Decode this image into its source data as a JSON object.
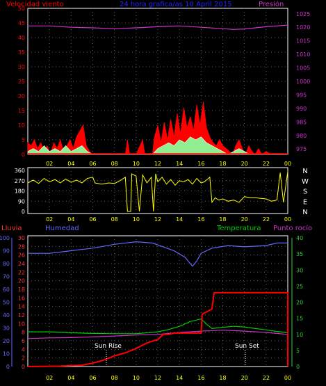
{
  "header": {
    "wind_label": "Velocidad viento",
    "title": "24 hora grafica/as  10 April 2015",
    "pressure_label": "Presión"
  },
  "lower_header": {
    "rain_label": "Lluvia",
    "humidity_label": "Humedad",
    "temperature_label": "Temperatura",
    "dewpoint_label": "Punto rocío"
  },
  "annotations": {
    "sunrise": "Sun Rise",
    "sunset": "Sun Set"
  },
  "colors": {
    "wind": "#ff0000",
    "wind_gust_fill": "#90ee90",
    "wind_avg": "#ffffff",
    "pressure": "#cc33cc",
    "direction": "#ffff00",
    "humidity": "#6666ff",
    "temperature": "#00cc00",
    "dewpoint": "#cc33cc",
    "rain": "#ff0000",
    "grid": "#606060",
    "frame": "#ffffff",
    "wind_axis": "#ff0000",
    "pressure_axis": "#cc33cc",
    "direction_axis": "#ffffff",
    "rain_axis": "#ff3333",
    "humidity_axis": "#6666ff",
    "temp_axis": "#33cc33",
    "time_axis": "#ffff00"
  },
  "chart_data": [
    {
      "type": "area",
      "x_ticks": [
        "02",
        "04",
        "06",
        "08",
        "10",
        "12",
        "14",
        "16",
        "18",
        "20",
        "22",
        "00"
      ],
      "xlim": [
        0,
        24
      ],
      "left_axis": {
        "ticks": [
          0,
          5,
          10,
          15,
          20,
          25,
          30,
          35,
          40,
          45,
          50
        ],
        "ylim": [
          0,
          50
        ]
      },
      "right_axis": {
        "ticks": [
          975,
          980,
          985,
          990,
          995,
          1000,
          1005,
          1010,
          1015,
          1020,
          1025
        ],
        "ylim": [
          973,
          1027
        ]
      },
      "series": [
        {
          "name": "Velocidad viento",
          "values": [
            [
              0,
              4
            ],
            [
              0.3,
              3
            ],
            [
              0.6,
              5
            ],
            [
              0.9,
              2
            ],
            [
              1.2,
              4
            ],
            [
              1.5,
              1
            ],
            [
              1.8,
              3
            ],
            [
              2.1,
              0
            ],
            [
              2.4,
              4
            ],
            [
              2.7,
              2
            ],
            [
              3.0,
              5
            ],
            [
              3.3,
              1
            ],
            [
              3.6,
              3
            ],
            [
              3.9,
              5
            ],
            [
              4.2,
              2
            ],
            [
              4.5,
              6
            ],
            [
              4.8,
              8
            ],
            [
              5.1,
              10
            ],
            [
              5.4,
              3
            ],
            [
              5.7,
              1
            ],
            [
              6.0,
              0
            ],
            [
              7,
              0
            ],
            [
              8,
              0
            ],
            [
              9,
              0
            ],
            [
              9.2,
              5
            ],
            [
              9.4,
              0
            ],
            [
              10,
              0
            ],
            [
              10.6,
              5
            ],
            [
              10.8,
              0
            ],
            [
              11.5,
              0
            ],
            [
              11.7,
              6
            ],
            [
              12.0,
              10
            ],
            [
              12.3,
              4
            ],
            [
              12.6,
              11
            ],
            [
              12.9,
              5
            ],
            [
              13.2,
              12
            ],
            [
              13.5,
              6
            ],
            [
              13.8,
              14
            ],
            [
              14.1,
              7
            ],
            [
              14.4,
              16
            ],
            [
              14.7,
              9
            ],
            [
              15.0,
              13
            ],
            [
              15.3,
              8
            ],
            [
              15.6,
              17
            ],
            [
              15.9,
              10
            ],
            [
              16.2,
              18
            ],
            [
              16.5,
              9
            ],
            [
              16.8,
              6
            ],
            [
              17.1,
              4
            ],
            [
              17.4,
              3
            ],
            [
              17.7,
              5
            ],
            [
              18.0,
              3
            ],
            [
              18.3,
              2
            ],
            [
              18.6,
              1
            ],
            [
              18.9,
              0
            ],
            [
              19.2,
              3
            ],
            [
              19.5,
              5
            ],
            [
              19.8,
              2
            ],
            [
              20.1,
              0
            ],
            [
              20.4,
              3
            ],
            [
              20.7,
              1
            ],
            [
              21.0,
              0
            ],
            [
              21.3,
              2
            ],
            [
              21.6,
              0
            ],
            [
              22.0,
              1
            ],
            [
              22.5,
              0
            ],
            [
              24,
              0
            ]
          ]
        },
        {
          "name": "",
          "values": [
            [
              0,
              1
            ],
            [
              0.5,
              2
            ],
            [
              1,
              1
            ],
            [
              1.5,
              3
            ],
            [
              2,
              1
            ],
            [
              2.5,
              2
            ],
            [
              3,
              1
            ],
            [
              3.5,
              3
            ],
            [
              4,
              1
            ],
            [
              4.5,
              2
            ],
            [
              5,
              3
            ],
            [
              5.5,
              1
            ],
            [
              6,
              0
            ],
            [
              11.5,
              0
            ],
            [
              12,
              2
            ],
            [
              12.5,
              3
            ],
            [
              13,
              4
            ],
            [
              13.5,
              3
            ],
            [
              14,
              5
            ],
            [
              14.5,
              4
            ],
            [
              15,
              6
            ],
            [
              15.5,
              5
            ],
            [
              16,
              6
            ],
            [
              16.5,
              4
            ],
            [
              17,
              3
            ],
            [
              17.5,
              2
            ],
            [
              18,
              1
            ],
            [
              18.5,
              0
            ],
            [
              19,
              1
            ],
            [
              19.5,
              2
            ],
            [
              20,
              1
            ],
            [
              20.5,
              0
            ],
            [
              24,
              0
            ]
          ]
        },
        {
          "name": "Presión",
          "values": [
            [
              0,
              1020.5
            ],
            [
              2,
              1020.5
            ],
            [
              4,
              1020
            ],
            [
              6,
              1019.8
            ],
            [
              8,
              1019.5
            ],
            [
              10,
              1019.8
            ],
            [
              12,
              1020.2
            ],
            [
              14,
              1020.5
            ],
            [
              16,
              1020
            ],
            [
              18,
              1019.5
            ],
            [
              19,
              1019.2
            ],
            [
              20,
              1019.4
            ],
            [
              22,
              1020.2
            ],
            [
              24,
              1020.8
            ]
          ]
        }
      ]
    },
    {
      "type": "line",
      "x_ticks": [
        "02",
        "04",
        "06",
        "08",
        "10",
        "12",
        "14",
        "16",
        "18",
        "20",
        "22",
        "00"
      ],
      "xlim": [
        0,
        24
      ],
      "y_ticks": [
        0,
        90,
        180,
        270,
        360
      ],
      "ylim": [
        0,
        360
      ],
      "right_labels": [
        "N",
        "W",
        "S",
        "E",
        "N"
      ],
      "series": [
        {
          "name": "",
          "values": [
            [
              0,
              250
            ],
            [
              0.5,
              275
            ],
            [
              1,
              245
            ],
            [
              1.5,
              290
            ],
            [
              2,
              260
            ],
            [
              2.5,
              280
            ],
            [
              3,
              250
            ],
            [
              3.5,
              285
            ],
            [
              4,
              255
            ],
            [
              4.5,
              275
            ],
            [
              5,
              250
            ],
            [
              5.5,
              290
            ],
            [
              6,
              300
            ],
            [
              6.2,
              250
            ],
            [
              6.8,
              240
            ],
            [
              7.5,
              250
            ],
            [
              8,
              245
            ],
            [
              8.5,
              270
            ],
            [
              9,
              300
            ],
            [
              9.2,
              0
            ],
            [
              9.5,
              0
            ],
            [
              9.6,
              330
            ],
            [
              10,
              310
            ],
            [
              10.3,
              0
            ],
            [
              10.6,
              320
            ],
            [
              11,
              250
            ],
            [
              11.4,
              300
            ],
            [
              11.6,
              0
            ],
            [
              11.8,
              330
            ],
            [
              12,
              260
            ],
            [
              12.4,
              300
            ],
            [
              12.8,
              240
            ],
            [
              13.2,
              280
            ],
            [
              13.6,
              230
            ],
            [
              14,
              270
            ],
            [
              14.4,
              260
            ],
            [
              14.8,
              280
            ],
            [
              15.2,
              240
            ],
            [
              15.6,
              290
            ],
            [
              16,
              250
            ],
            [
              16.3,
              260
            ],
            [
              16.8,
              300
            ],
            [
              17,
              80
            ],
            [
              17.3,
              120
            ],
            [
              17.6,
              100
            ],
            [
              18,
              110
            ],
            [
              18.5,
              90
            ],
            [
              19,
              100
            ],
            [
              19.5,
              80
            ],
            [
              20,
              130
            ],
            [
              20.5,
              120
            ],
            [
              21,
              120
            ],
            [
              21.5,
              115
            ],
            [
              22,
              110
            ],
            [
              22.5,
              90
            ],
            [
              23,
              100
            ],
            [
              23.3,
              340
            ],
            [
              23.6,
              80
            ],
            [
              24,
              350
            ]
          ]
        }
      ]
    },
    {
      "type": "line",
      "x_ticks": [
        "02",
        "04",
        "06",
        "08",
        "10",
        "12",
        "14",
        "16",
        "18",
        "20",
        "22",
        "00"
      ],
      "xlim": [
        0,
        24
      ],
      "rain_axis": {
        "ticks": [
          0,
          2,
          4,
          6,
          8,
          10,
          12,
          14,
          16,
          18,
          20,
          22,
          24,
          26,
          28,
          30
        ],
        "ylim": [
          0,
          30
        ]
      },
      "humidity_axis": {
        "ticks": [
          0,
          10,
          20,
          30,
          40,
          50,
          60,
          70,
          80,
          90,
          100
        ],
        "ylim": [
          0,
          100
        ]
      },
      "temp_axis": {
        "ticks": [
          0,
          5,
          10,
          15,
          20,
          25,
          30,
          35,
          40
        ],
        "ylim": [
          0,
          40
        ]
      },
      "series": [
        {
          "name": "Humedad",
          "values": [
            [
              0,
              88
            ],
            [
              2,
              88
            ],
            [
              4,
              90
            ],
            [
              6,
              92
            ],
            [
              8,
              95
            ],
            [
              10,
              97
            ],
            [
              11.5,
              96
            ],
            [
              12.5,
              93
            ],
            [
              13.5,
              90
            ],
            [
              14.5,
              85
            ],
            [
              15.2,
              78
            ],
            [
              15.6,
              82
            ],
            [
              16,
              88
            ],
            [
              17,
              92
            ],
            [
              18.5,
              94
            ],
            [
              20,
              93
            ],
            [
              22,
              94
            ],
            [
              23,
              96
            ],
            [
              24,
              96
            ]
          ]
        },
        {
          "name": "Temperatura",
          "values": [
            [
              0,
              10.8
            ],
            [
              2,
              10.8
            ],
            [
              4,
              10.5
            ],
            [
              6,
              10.3
            ],
            [
              8,
              10.2
            ],
            [
              10,
              10.2
            ],
            [
              12,
              10.8
            ],
            [
              13,
              11.5
            ],
            [
              14,
              12.5
            ],
            [
              15,
              14.0
            ],
            [
              16,
              14.8
            ],
            [
              16.5,
              13.2
            ],
            [
              17,
              11.8
            ],
            [
              18,
              12.2
            ],
            [
              19,
              12.5
            ],
            [
              20,
              12.3
            ],
            [
              21,
              11.8
            ],
            [
              22,
              11.4
            ],
            [
              23,
              10.9
            ],
            [
              24,
              10.5
            ]
          ]
        },
        {
          "name": "Punto rocío",
          "values": [
            [
              0,
              8.7
            ],
            [
              2,
              8.9
            ],
            [
              4,
              9.0
            ],
            [
              6,
              9.2
            ],
            [
              8,
              9.5
            ],
            [
              10,
              9.8
            ],
            [
              12,
              10.0
            ],
            [
              14,
              10.6
            ],
            [
              16,
              11.0
            ],
            [
              18,
              11.3
            ],
            [
              20,
              11.0
            ],
            [
              22,
              10.6
            ],
            [
              24,
              10.0
            ]
          ]
        },
        {
          "name": "Lluvia",
          "values": [
            [
              0,
              0
            ],
            [
              3,
              0.1
            ],
            [
              5,
              0.3
            ],
            [
              6,
              0.8
            ],
            [
              7,
              1.5
            ],
            [
              8,
              2.5
            ],
            [
              9,
              3.2
            ],
            [
              10,
              4.2
            ],
            [
              11,
              5.5
            ],
            [
              12,
              6.3
            ],
            [
              12.5,
              7.5
            ],
            [
              13,
              7.5
            ],
            [
              13.5,
              7.8
            ],
            [
              16,
              7.8
            ],
            [
              16.1,
              12.2
            ],
            [
              17,
              13.4
            ],
            [
              17.2,
              17.2
            ],
            [
              24,
              17.2
            ],
            [
              24,
              0
            ]
          ]
        }
      ]
    }
  ]
}
